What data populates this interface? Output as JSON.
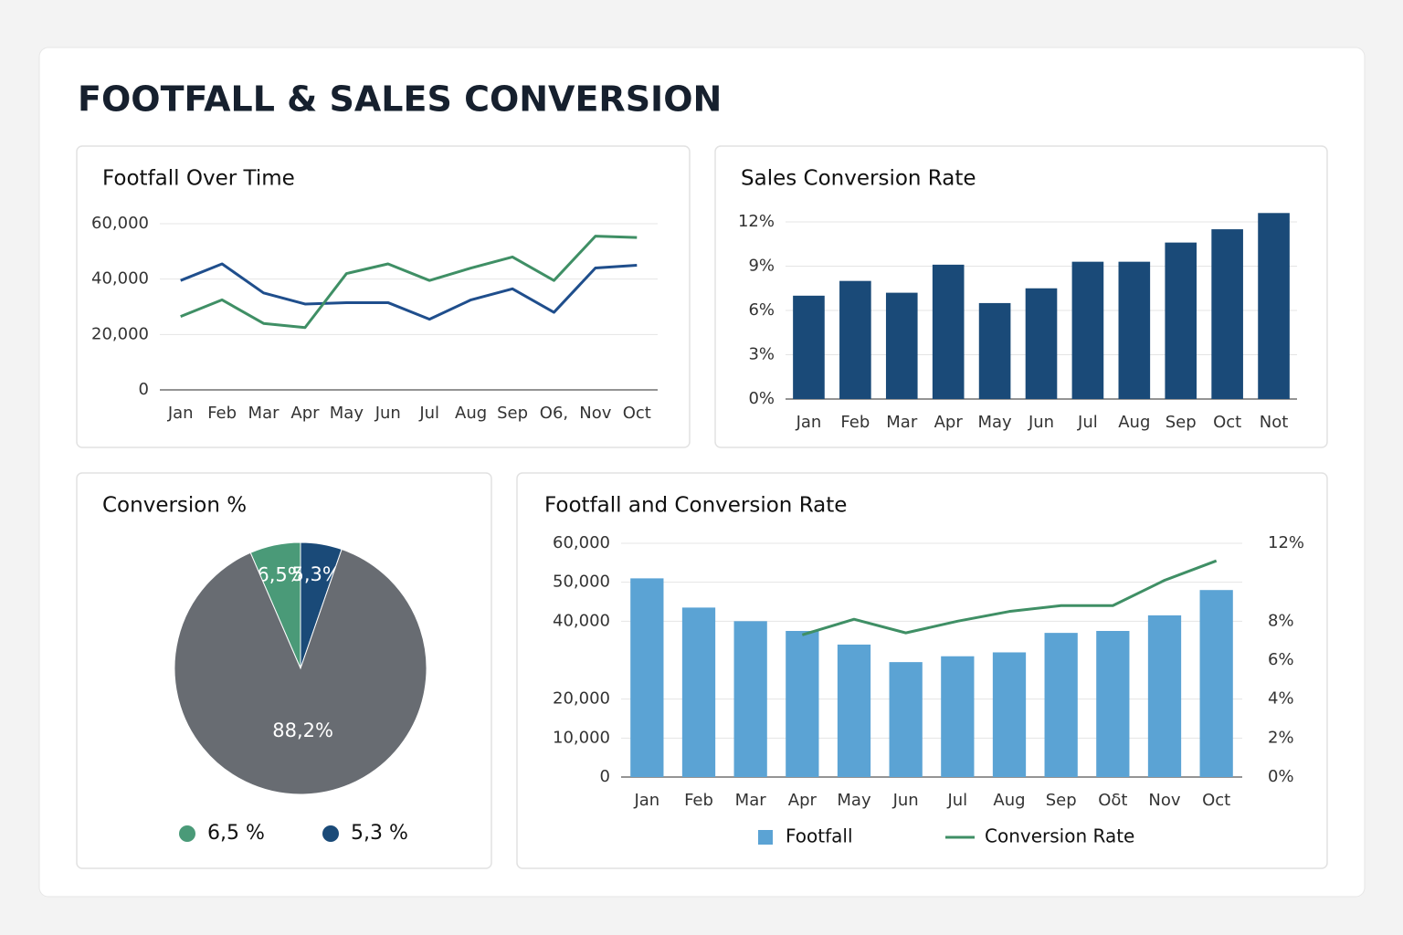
{
  "title": "FOOTFALL & SALES CONVERSION",
  "chart_data": [
    {
      "type": "line",
      "title": "Footfall Over Time",
      "categories": [
        "Jan",
        "Feb",
        "Mar",
        "Apr",
        "May",
        "Jun",
        "Jul",
        "Aug",
        "Sep",
        "O6,",
        "Nov",
        "Oct"
      ],
      "series": [
        {
          "color": "#1f4e8c",
          "values": [
            39500,
            45500,
            35000,
            31000,
            31500,
            31500,
            25500,
            32500,
            36500,
            28000,
            44000,
            45000
          ]
        },
        {
          "color": "#3f8f65",
          "values": [
            26500,
            32500,
            24000,
            22500,
            42000,
            45500,
            39500,
            44000,
            48000,
            39500,
            55500,
            55000
          ]
        }
      ],
      "ylim": [
        0,
        60000
      ],
      "yticks": [
        0,
        {
          "value": 20000,
          "label": "20,000"
        },
        {
          "value": 40000,
          "label": "40,000"
        },
        {
          "value": 60000,
          "label": "60,000"
        }
      ],
      "grid": true
    },
    {
      "type": "bar",
      "title": "Sales Conversion Rate",
      "categories": [
        "Jan",
        "Feb",
        "Mar",
        "Apr",
        "May",
        "Jun",
        "Jul",
        "Aug",
        "Sep",
        "Oct",
        "Not"
      ],
      "values": [
        7.0,
        8.0,
        7.2,
        9.1,
        6.5,
        7.5,
        9.3,
        9.3,
        10.6,
        11.5,
        12.6
      ],
      "color": "#1a4a78",
      "ylim": [
        0,
        12
      ],
      "yticks": [
        {
          "value": 0,
          "label": "0%"
        },
        {
          "value": 3,
          "label": "3%"
        },
        {
          "value": 6,
          "label": "6%"
        },
        {
          "value": 9,
          "label": "9%"
        },
        {
          "value": 12,
          "label": "12%"
        }
      ],
      "grid": true
    },
    {
      "type": "pie",
      "title": "Conversion %",
      "categories": [
        "6,5 %",
        "5,3 %",
        null
      ],
      "values": [
        6.5,
        5.3,
        88.2
      ],
      "value_labels": [
        "6,5%",
        "5,3%",
        "88,2%"
      ],
      "colors": [
        "#4a9a78",
        "#1a4a78",
        "#686c72"
      ]
    },
    {
      "type": "bar-line",
      "title": "Footfall and Conversion Rate",
      "categories": [
        "Jan",
        "Feb",
        "Mar",
        "Apr",
        "May",
        "Jun",
        "Jul",
        "Aug",
        "Sep",
        "Oδt",
        "Nov",
        "Oct"
      ],
      "series": [
        {
          "name": "Footfall",
          "type": "bar",
          "color": "#5ba3d4",
          "values": [
            51000,
            43500,
            40000,
            37500,
            34000,
            29500,
            31000,
            32000,
            37000,
            37500,
            41500,
            48000
          ]
        },
        {
          "name": "Conversion Rate",
          "type": "line",
          "axis": "y2",
          "color": "#3f8f65",
          "values": [
            null,
            null,
            null,
            7.3,
            8.1,
            7.4,
            8.0,
            8.5,
            8.8,
            8.8,
            10.1,
            11.1
          ]
        }
      ],
      "ylim": [
        0,
        60000
      ],
      "yticks": [
        0,
        {
          "value": 10000,
          "label": "10,000"
        },
        {
          "value": 20000,
          "label": "20,000"
        },
        {
          "value": 40000,
          "label": "40,000"
        },
        {
          "value": 50000,
          "label": "50,000"
        },
        {
          "value": 60000,
          "label": "60,000"
        }
      ],
      "y2lim": [
        0,
        12
      ],
      "y2ticks": [
        {
          "value": 0,
          "label": "0%"
        },
        {
          "value": 2,
          "label": "2%"
        },
        {
          "value": 4,
          "label": "4%"
        },
        {
          "value": 6,
          "label": "6%"
        },
        {
          "value": 8,
          "label": "8%"
        },
        {
          "value": 12,
          "label": "12%"
        }
      ],
      "grid": true
    }
  ]
}
